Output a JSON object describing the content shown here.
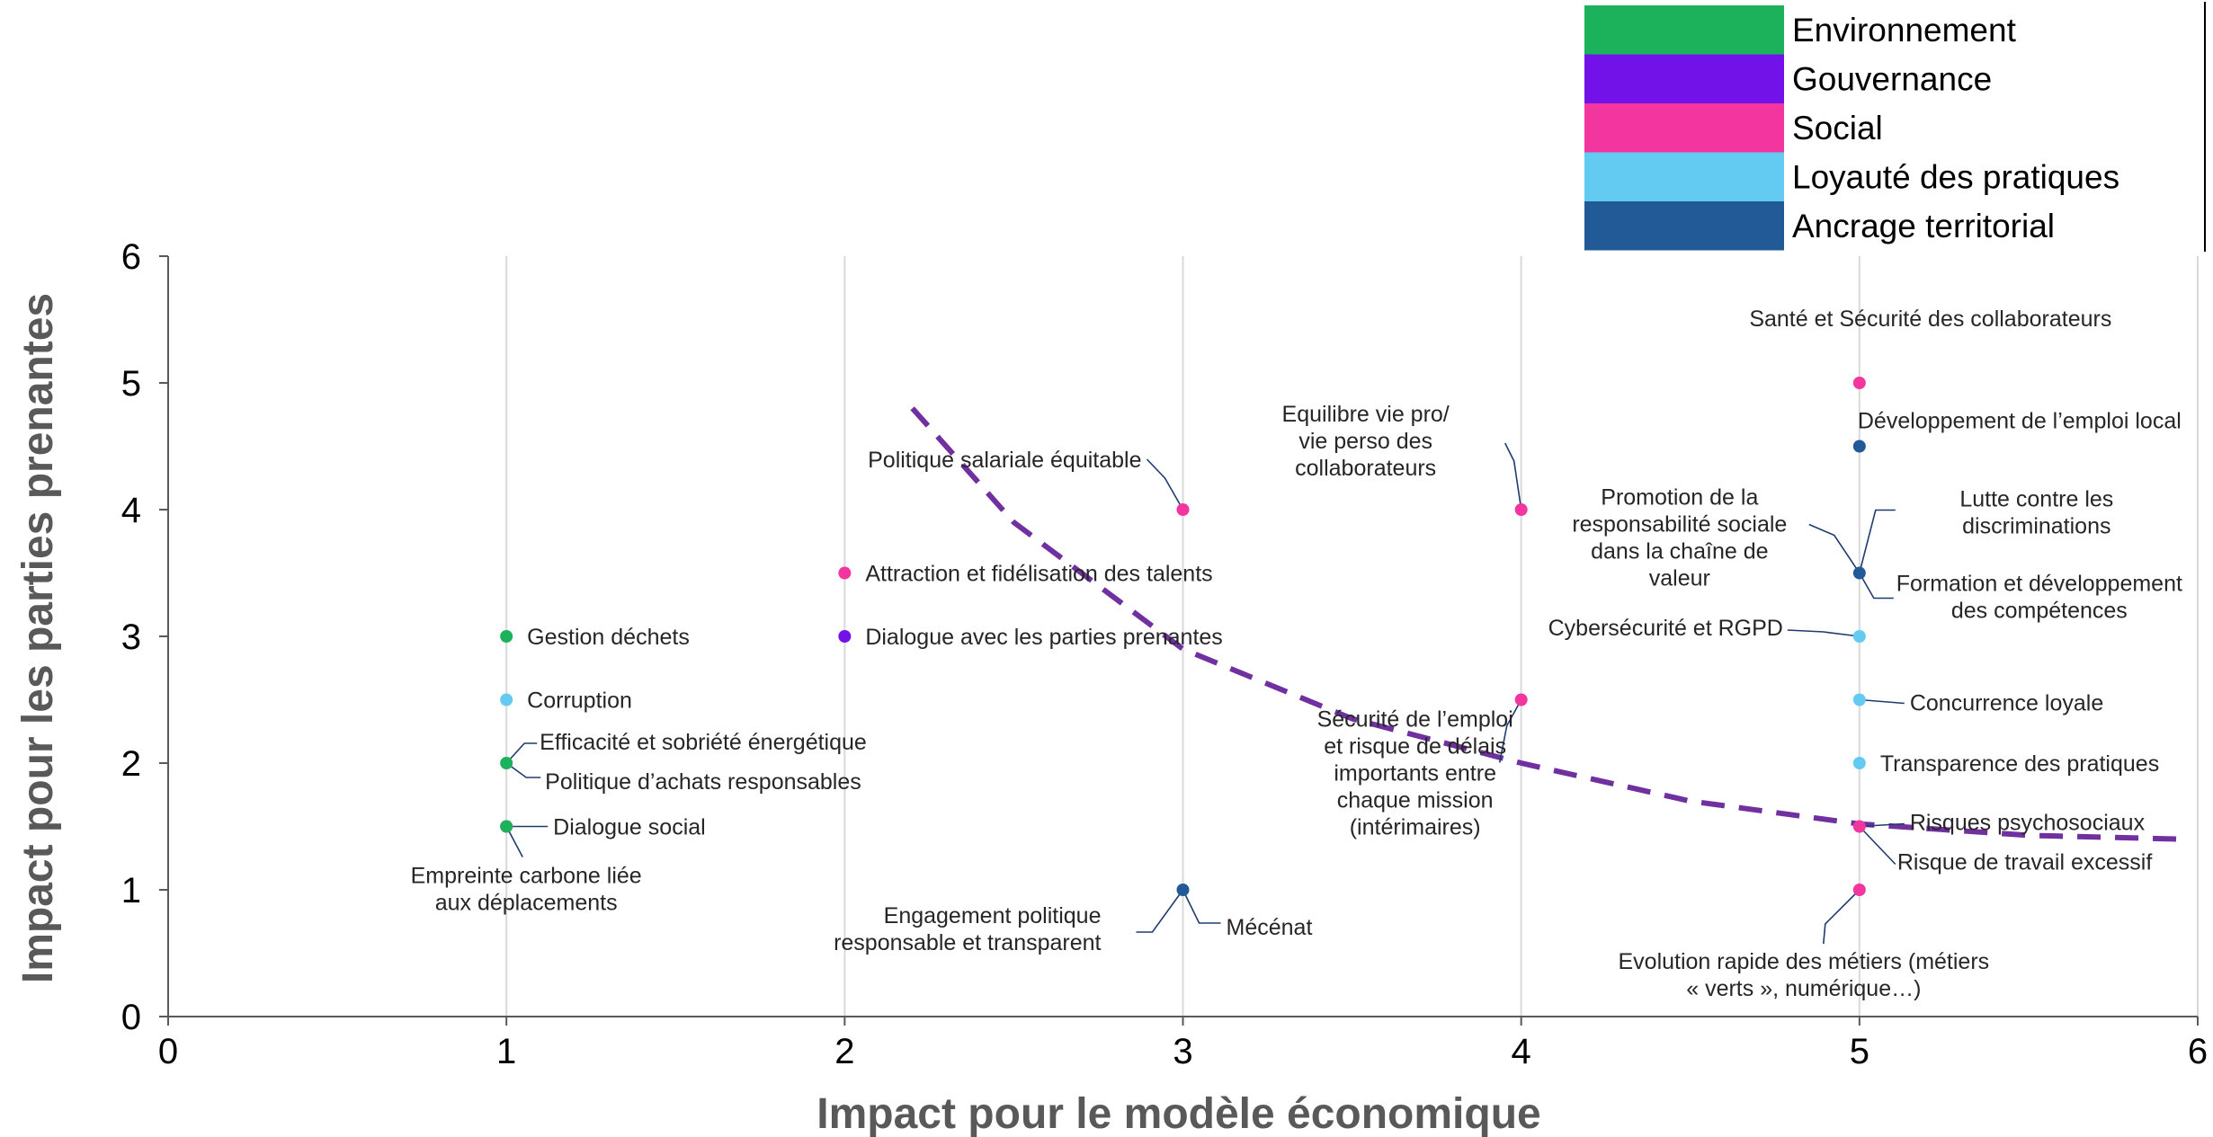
{
  "chart_data": {
    "type": "scatter",
    "title": "",
    "xlabel": "Impact pour le modèle économique",
    "ylabel": "Impact pour les parties prenantes",
    "xlim": [
      0,
      6
    ],
    "ylim": [
      0,
      6
    ],
    "xticks": [
      "0",
      "1",
      "2",
      "3",
      "4",
      "5",
      "6"
    ],
    "yticks": [
      "0",
      "1",
      "2",
      "3",
      "4",
      "5",
      "6"
    ],
    "grid": "vertical",
    "legend_position": "top-right",
    "categories": [
      {
        "name": "Environnement",
        "color": "#1cb25c"
      },
      {
        "name": "Gouvernance",
        "color": "#7212e8"
      },
      {
        "name": "Social",
        "color": "#f2359f"
      },
      {
        "name": "Loyauté des pratiques",
        "color": "#63cbf2"
      },
      {
        "name": "Ancrage territorial",
        "color": "#215a97"
      }
    ],
    "points": [
      {
        "label": "Gestion déchets",
        "x": 1,
        "y": 3,
        "category": "Environnement"
      },
      {
        "label": "Corruption",
        "x": 1,
        "y": 2.5,
        "category": "Loyauté des pratiques"
      },
      {
        "label": "Efficacité et sobriété énergétique",
        "x": 1,
        "y": 2,
        "category": "Environnement"
      },
      {
        "label": "Politique d’achats responsables",
        "x": 1,
        "y": 2,
        "category": "Environnement"
      },
      {
        "label": "Dialogue social",
        "x": 1,
        "y": 1.5,
        "category": "Social"
      },
      {
        "label": "Empreinte carbone liée aux déplacements",
        "x": 1,
        "y": 1.5,
        "category": "Environnement"
      },
      {
        "label": "Attraction et fidélisation des talents",
        "x": 2,
        "y": 3.5,
        "category": "Social"
      },
      {
        "label": "Dialogue avec les parties prenantes",
        "x": 2,
        "y": 3,
        "category": "Gouvernance"
      },
      {
        "label": "Politique salariale équitable",
        "x": 3,
        "y": 4,
        "category": "Social"
      },
      {
        "label": "Mécénat",
        "x": 3,
        "y": 1,
        "category": "Ancrage territorial"
      },
      {
        "label": "Engagement politique responsable et transparent",
        "x": 3,
        "y": 1,
        "category": "Ancrage territorial"
      },
      {
        "label": "Equilibre vie pro/ vie perso des collaborateurs",
        "x": 4,
        "y": 4,
        "category": "Social"
      },
      {
        "label": "Sécurité de l’emploi et risque de délais importants entre chaque mission (intérimaires)",
        "x": 4,
        "y": 2.5,
        "category": "Social"
      },
      {
        "label": "Santé et Sécurité des collaborateurs",
        "x": 5,
        "y": 5,
        "category": "Social"
      },
      {
        "label": "Développement de l’emploi local",
        "x": 5,
        "y": 4.5,
        "category": "Ancrage territorial"
      },
      {
        "label": "Promotion de la responsabilité sociale dans la chaîne de valeur",
        "x": 5,
        "y": 3.5,
        "category": "Ancrage territorial"
      },
      {
        "label": "Lutte contre les discriminations",
        "x": 5,
        "y": 3.5,
        "category": "Ancrage territorial"
      },
      {
        "label": "Formation et développement des compétences",
        "x": 5,
        "y": 3.5,
        "category": "Ancrage territorial"
      },
      {
        "label": "Cybersécurité et RGPD",
        "x": 5,
        "y": 3,
        "category": "Loyauté des pratiques"
      },
      {
        "label": "Concurrence loyale",
        "x": 5,
        "y": 2.5,
        "category": "Loyauté des pratiques"
      },
      {
        "label": "Transparence des pratiques",
        "x": 5,
        "y": 2,
        "category": "Loyauté des pratiques"
      },
      {
        "label": "Risques psychosociaux",
        "x": 5,
        "y": 1.5,
        "category": "Social"
      },
      {
        "label": "Risque de travail excessif",
        "x": 5,
        "y": 1.5,
        "category": "Social"
      },
      {
        "label": "Evolution rapide des métiers (métiers « verts », numérique…)",
        "x": 5,
        "y": 1,
        "category": "Social"
      }
    ],
    "curve": {
      "color": "#7030a0",
      "style": "dashed",
      "x": [
        2.2,
        2.5,
        3.0,
        3.5,
        4.0,
        4.5,
        5.0,
        5.5,
        5.95
      ],
      "y": [
        4.8,
        3.9,
        2.9,
        2.35,
        2.0,
        1.7,
        1.52,
        1.43,
        1.4
      ]
    }
  }
}
